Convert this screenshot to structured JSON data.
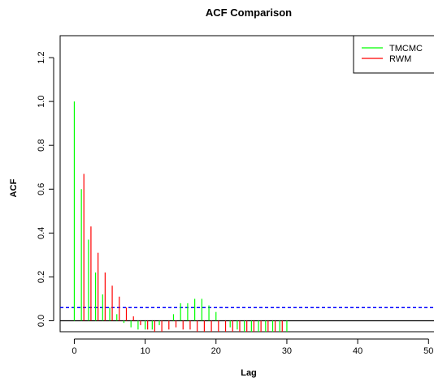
{
  "chart_data": {
    "type": "bar",
    "title": "ACF Comparison",
    "xlabel": "Lag",
    "ylabel": "ACF",
    "xlim": [
      -2,
      51
    ],
    "ylim": [
      -0.05,
      1.3
    ],
    "xticks": [
      0,
      10,
      20,
      30,
      40,
      50
    ],
    "yticks": [
      0.0,
      0.2,
      0.4,
      0.6,
      0.8,
      1.0,
      1.2
    ],
    "xtick_labels": [
      "0",
      "10",
      "20",
      "30",
      "40",
      "50"
    ],
    "ytick_labels": [
      "0.0",
      "0.2",
      "0.4",
      "0.6",
      "0.8",
      "1.0",
      "1.2"
    ],
    "grid": false,
    "legend_position": "top-right",
    "series": [
      {
        "name": "TMCMC",
        "color": "#00ff00",
        "x": [
          0,
          1,
          2,
          3,
          4,
          5,
          6,
          7,
          8,
          9,
          10,
          11,
          12,
          13,
          14,
          15,
          16,
          17,
          18,
          19,
          20,
          21,
          22,
          23,
          24,
          25,
          26,
          27,
          28,
          29,
          30
        ],
        "values": [
          1.0,
          0.6,
          0.37,
          0.22,
          0.12,
          0.06,
          0.03,
          -0.01,
          -0.03,
          -0.04,
          -0.04,
          -0.04,
          -0.02,
          0.0,
          0.03,
          0.08,
          0.08,
          0.1,
          0.1,
          0.07,
          0.04,
          0.0,
          -0.03,
          -0.04,
          -0.05,
          -0.05,
          -0.05,
          -0.05,
          -0.05,
          -0.05,
          -0.05
        ]
      },
      {
        "name": "RWM",
        "color": "#ff0000",
        "x": [
          1,
          2,
          3,
          4,
          5,
          6,
          7,
          8,
          9,
          10,
          11,
          12,
          13,
          14,
          15,
          16,
          17,
          18,
          19,
          20,
          21,
          22,
          23,
          24,
          25,
          26,
          27,
          28,
          29
        ],
        "values": [
          0.67,
          0.43,
          0.31,
          0.22,
          0.16,
          0.11,
          0.06,
          0.02,
          -0.02,
          -0.04,
          -0.05,
          -0.05,
          -0.04,
          -0.03,
          -0.04,
          -0.04,
          -0.05,
          -0.05,
          -0.05,
          -0.05,
          -0.05,
          -0.05,
          -0.05,
          -0.05,
          -0.05,
          -0.05,
          -0.05,
          -0.05,
          -0.05
        ]
      }
    ],
    "reference_lines": [
      {
        "type": "horizontal",
        "y": 0.06,
        "color": "#0000ff",
        "style": "dashed"
      },
      {
        "type": "horizontal",
        "y": 0.0,
        "color": "#000000",
        "style": "solid"
      }
    ]
  }
}
